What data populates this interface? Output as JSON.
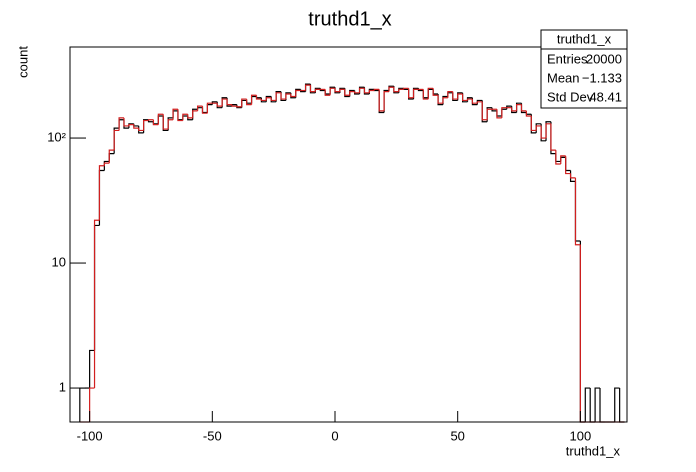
{
  "chart_data": {
    "type": "histogram",
    "title": "truthd1_x",
    "x_label": "truthd1_x",
    "y_label": "count",
    "log_y": true,
    "xlim": [
      -108,
      119
    ],
    "ylim": [
      0.535,
      535
    ],
    "xticks": [
      -100,
      -50,
      0,
      50,
      100
    ],
    "yticks": [
      1,
      10,
      {
        "value": 100,
        "label": "10²"
      }
    ],
    "bins": [
      -104,
      -102,
      -100,
      -98,
      -96,
      -94,
      -92,
      -90,
      -88,
      -86,
      -84,
      -82,
      -80,
      -78,
      -76,
      -74,
      -72,
      -70,
      -68,
      -66,
      -64,
      -62,
      -60,
      -58,
      -56,
      -54,
      -52,
      -50,
      -48,
      -46,
      -44,
      -42,
      -40,
      -38,
      -36,
      -34,
      -32,
      -30,
      -28,
      -26,
      -24,
      -22,
      -20,
      -18,
      -16,
      -14,
      -12,
      -10,
      -8,
      -6,
      -4,
      -2,
      0,
      2,
      4,
      6,
      8,
      10,
      12,
      14,
      16,
      18,
      20,
      22,
      24,
      26,
      28,
      30,
      32,
      34,
      36,
      38,
      40,
      42,
      44,
      46,
      48,
      50,
      52,
      54,
      56,
      58,
      60,
      62,
      64,
      66,
      68,
      70,
      72,
      74,
      76,
      78,
      80,
      82,
      84,
      86,
      88,
      90,
      92,
      94,
      96,
      98,
      100,
      102,
      104,
      106,
      108,
      110,
      112,
      114,
      116,
      118
    ],
    "series": [
      {
        "color": "#000000",
        "values": [
          1,
          1,
          2,
          20,
          55,
          65,
          75,
          120,
          140,
          120,
          130,
          125,
          110,
          140,
          135,
          130,
          150,
          115,
          145,
          165,
          140,
          150,
          140,
          170,
          175,
          160,
          185,
          195,
          175,
          210,
          180,
          185,
          175,
          200,
          190,
          215,
          210,
          195,
          215,
          195,
          235,
          200,
          230,
          210,
          245,
          235,
          270,
          230,
          250,
          240,
          225,
          255,
          230,
          250,
          215,
          240,
          225,
          255,
          225,
          245,
          240,
          160,
          240,
          260,
          230,
          250,
          245,
          205,
          250,
          240,
          210,
          245,
          225,
          185,
          215,
          230,
          200,
          230,
          195,
          210,
          185,
          200,
          135,
          175,
          165,
          150,
          170,
          180,
          160,
          190,
          160,
          155,
          110,
          130,
          95,
          135,
          75,
          65,
          70,
          55,
          45,
          15,
          0,
          1,
          0,
          1,
          0,
          0,
          0,
          1,
          0
        ]
      },
      {
        "color": "#d11f1f",
        "values": [
          0,
          0,
          1,
          22,
          60,
          63,
          80,
          115,
          145,
          125,
          128,
          120,
          115,
          138,
          140,
          128,
          155,
          118,
          140,
          170,
          138,
          155,
          145,
          165,
          180,
          158,
          190,
          190,
          180,
          205,
          185,
          180,
          178,
          205,
          185,
          220,
          205,
          200,
          210,
          200,
          230,
          205,
          225,
          215,
          240,
          240,
          265,
          235,
          245,
          245,
          220,
          250,
          235,
          245,
          220,
          235,
          230,
          250,
          230,
          240,
          245,
          165,
          235,
          255,
          235,
          245,
          250,
          210,
          245,
          245,
          205,
          250,
          220,
          190,
          210,
          235,
          205,
          225,
          200,
          205,
          190,
          195,
          140,
          170,
          170,
          145,
          175,
          175,
          165,
          185,
          165,
          150,
          115,
          125,
          100,
          130,
          80,
          62,
          72,
          52,
          48,
          14,
          0,
          0,
          0,
          0,
          0,
          0,
          0,
          0,
          0
        ]
      }
    ]
  },
  "stats_box": {
    "title": "truthd1_x",
    "rows": [
      [
        "Entries",
        "20000"
      ],
      [
        "Mean",
        "−1.133"
      ],
      [
        "Std Dev",
        "48.41"
      ]
    ]
  }
}
